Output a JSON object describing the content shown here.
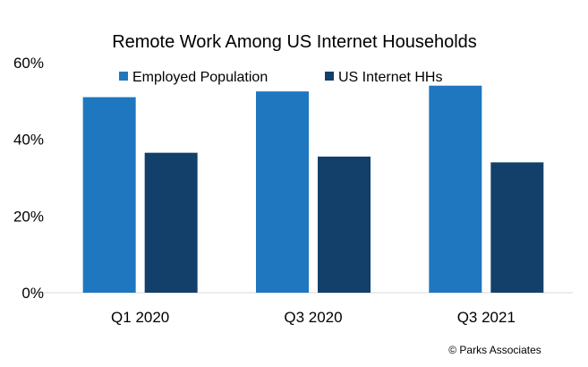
{
  "chart_data": {
    "type": "bar",
    "title": "Remote Work Among US Internet Households",
    "categories": [
      "Q1 2020",
      "Q3 2020",
      "Q3 2021"
    ],
    "series": [
      {
        "name": "Employed Population",
        "values": [
          51,
          52.5,
          54
        ],
        "color": "#1f77c0"
      },
      {
        "name": "US Internet  HHs",
        "values": [
          36.5,
          35.5,
          34
        ],
        "color": "#12406a"
      }
    ],
    "y_ticks": [
      "0%",
      "20%",
      "40%",
      "60%"
    ],
    "y_tick_values": [
      0,
      20,
      40,
      60
    ],
    "ylim": [
      0,
      60
    ],
    "grid": false,
    "legend_position": "top",
    "xlabel": "",
    "ylabel": ""
  },
  "footer": {
    "copyright": "© Parks Associates"
  }
}
